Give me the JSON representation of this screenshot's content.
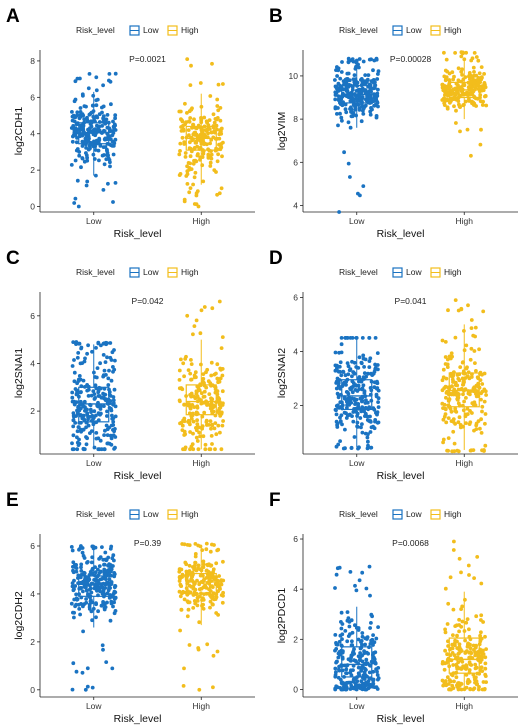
{
  "colors": {
    "low": "#1a73c2",
    "high": "#f2bd1c"
  },
  "legend": {
    "title": "Risk_level",
    "items": [
      "Low",
      "High"
    ]
  },
  "chart_data": [
    {
      "panel": "A",
      "type": "box",
      "ylabel": "log2CDH1",
      "xlabel": "Risk_level",
      "categories": [
        "Low",
        "High"
      ],
      "p_value": "P=0.0021",
      "ylim": [
        -0.3,
        8.6
      ],
      "yticks": [
        0,
        2,
        4,
        6,
        8
      ],
      "series": [
        {
          "name": "Low",
          "q1": 3.45,
          "median": 4.05,
          "q3": 4.6,
          "whisker_low": 1.7,
          "whisker_high": 6.3,
          "min": 0.0,
          "max": 7.3,
          "n": 260
        },
        {
          "name": "High",
          "q1": 3.1,
          "median": 3.75,
          "q3": 4.4,
          "whisker_low": 1.2,
          "whisker_high": 6.2,
          "min": 0.0,
          "max": 8.1,
          "n": 220
        }
      ]
    },
    {
      "panel": "B",
      "type": "box",
      "ylabel": "log2VIM",
      "xlabel": "Risk_level",
      "categories": [
        "Low",
        "High"
      ],
      "p_value": "P=0.00028",
      "ylim": [
        3.7,
        11.2
      ],
      "yticks": [
        4,
        6,
        8,
        10
      ],
      "series": [
        {
          "name": "Low",
          "q1": 8.75,
          "median": 9.15,
          "q3": 9.55,
          "whisker_low": 7.6,
          "whisker_high": 10.6,
          "min": 3.7,
          "max": 10.8,
          "n": 260
        },
        {
          "name": "High",
          "q1": 9.0,
          "median": 9.35,
          "q3": 9.7,
          "whisker_low": 8.0,
          "whisker_high": 10.7,
          "min": 6.3,
          "max": 11.1,
          "n": 220
        }
      ]
    },
    {
      "panel": "C",
      "type": "box",
      "ylabel": "log2SNAI1",
      "xlabel": "Risk_level",
      "categories": [
        "Low",
        "High"
      ],
      "p_value": "P=0.042",
      "ylim": [
        0.2,
        7.0
      ],
      "yticks": [
        2,
        4,
        6
      ],
      "series": [
        {
          "name": "Low",
          "q1": 1.55,
          "median": 2.3,
          "q3": 3.0,
          "whisker_low": 0.4,
          "whisker_high": 4.8,
          "min": 0.4,
          "max": 4.9,
          "n": 260
        },
        {
          "name": "High",
          "q1": 1.85,
          "median": 2.4,
          "q3": 3.1,
          "whisker_low": 0.4,
          "whisker_high": 5.0,
          "min": 0.4,
          "max": 6.6,
          "n": 220
        }
      ]
    },
    {
      "panel": "D",
      "type": "box",
      "ylabel": "log2SNAI2",
      "xlabel": "Risk_level",
      "categories": [
        "Low",
        "High"
      ],
      "p_value": "P=0.041",
      "ylim": [
        0.2,
        6.2
      ],
      "yticks": [
        2,
        4,
        6
      ],
      "series": [
        {
          "name": "Low",
          "q1": 1.85,
          "median": 2.35,
          "q3": 2.95,
          "whisker_low": 0.45,
          "whisker_high": 4.5,
          "min": 0.4,
          "max": 4.5,
          "n": 260
        },
        {
          "name": "High",
          "q1": 1.95,
          "median": 2.55,
          "q3": 3.2,
          "whisker_low": 0.35,
          "whisker_high": 5.0,
          "min": 0.3,
          "max": 5.9,
          "n": 220
        }
      ]
    },
    {
      "panel": "E",
      "type": "box",
      "ylabel": "log2CDH2",
      "xlabel": "Risk_level",
      "categories": [
        "Low",
        "High"
      ],
      "p_value": "P=0.39",
      "ylim": [
        -0.3,
        6.5
      ],
      "yticks": [
        0,
        2,
        4,
        6
      ],
      "series": [
        {
          "name": "Low",
          "q1": 3.9,
          "median": 4.4,
          "q3": 4.75,
          "whisker_low": 2.6,
          "whisker_high": 5.9,
          "min": 0.0,
          "max": 6.0,
          "n": 260
        },
        {
          "name": "High",
          "q1": 4.0,
          "median": 4.5,
          "q3": 4.85,
          "whisker_low": 2.7,
          "whisker_high": 6.0,
          "min": 0.0,
          "max": 6.1,
          "n": 220
        }
      ]
    },
    {
      "panel": "F",
      "type": "box",
      "ylabel": "log2PDCD1",
      "xlabel": "Risk_level",
      "categories": [
        "Low",
        "High"
      ],
      "p_value": "P=0.0068",
      "ylim": [
        -0.3,
        6.2
      ],
      "yticks": [
        0,
        2,
        4,
        6
      ],
      "series": [
        {
          "name": "Low",
          "q1": 0.5,
          "median": 1.0,
          "q3": 1.7,
          "whisker_low": 0.0,
          "whisker_high": 3.3,
          "min": 0.0,
          "max": 4.9,
          "n": 260
        },
        {
          "name": "High",
          "q1": 0.65,
          "median": 1.2,
          "q3": 2.05,
          "whisker_low": 0.0,
          "whisker_high": 3.9,
          "min": 0.0,
          "max": 5.9,
          "n": 220
        }
      ]
    }
  ]
}
